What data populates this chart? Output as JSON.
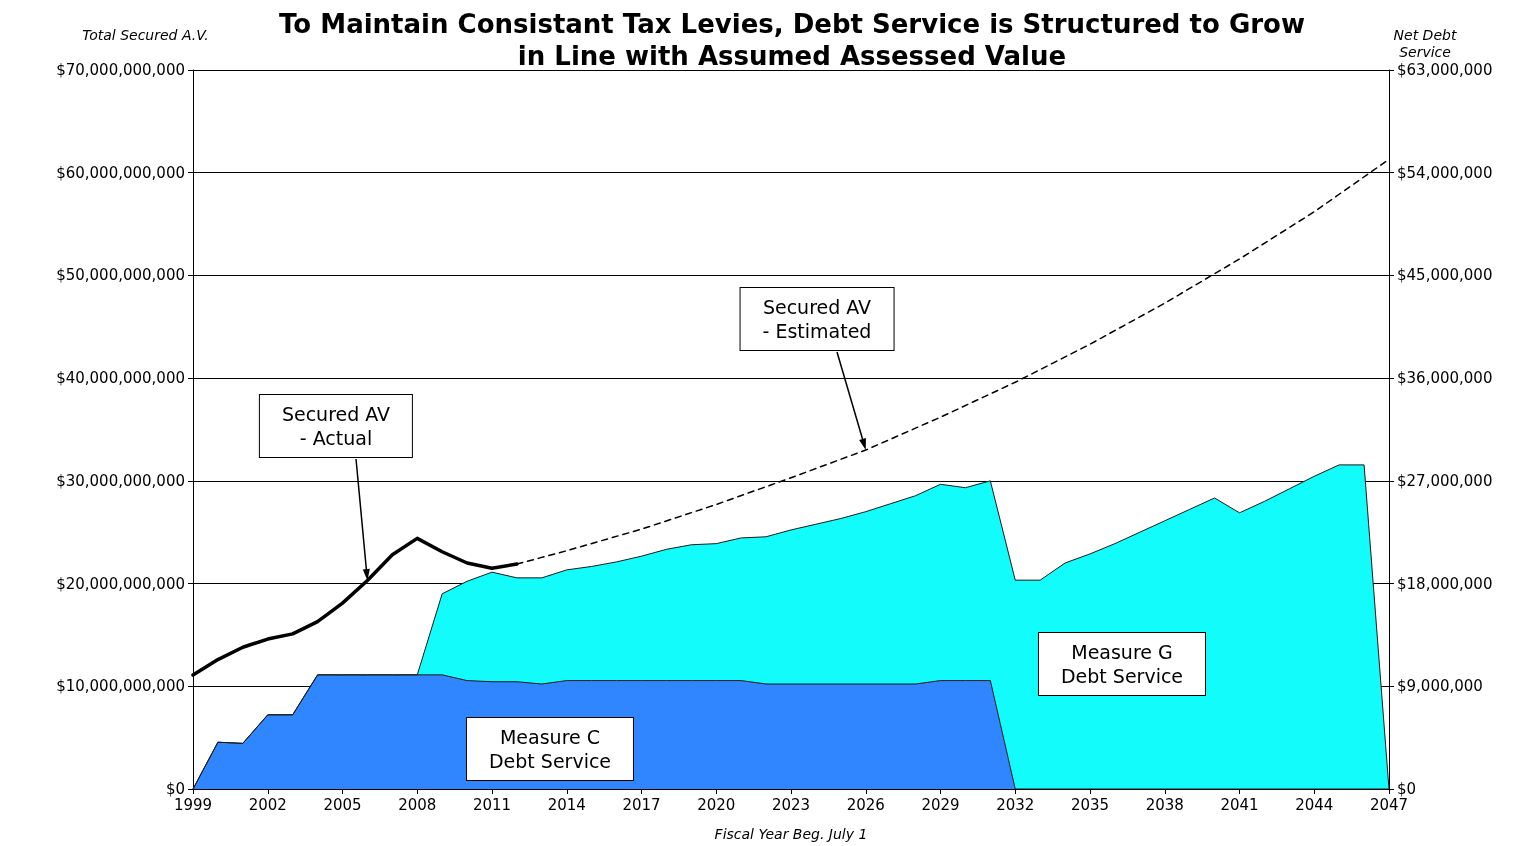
{
  "chart_data": {
    "type": "area",
    "title": "To Maintain Consistant Tax Levies, Debt Service is Structured to Grow\nin Line with Assumed Assessed Value",
    "xlabel": "Fiscal Year Beg. July 1",
    "ylabel": "Total Secured A.V.",
    "y2label": "Net Debt\nService",
    "x": [
      1999,
      2000,
      2001,
      2002,
      2003,
      2004,
      2005,
      2006,
      2007,
      2008,
      2009,
      2010,
      2011,
      2012,
      2013,
      2014,
      2015,
      2016,
      2017,
      2018,
      2019,
      2020,
      2021,
      2022,
      2023,
      2024,
      2025,
      2026,
      2027,
      2028,
      2029,
      2030,
      2031,
      2032,
      2033,
      2034,
      2035,
      2036,
      2037,
      2038,
      2039,
      2040,
      2041,
      2042,
      2043,
      2044,
      2045,
      2046,
      2047
    ],
    "stacked": true,
    "series": [
      {
        "name": "Measure C\nDebt Service",
        "axis": "y2",
        "color": "#2f86ff",
        "values": [
          0,
          4100000.0,
          4000000.0,
          6500000.0,
          6500000.0,
          10000000.0,
          10000000.0,
          10000000.0,
          10000000.0,
          10000000.0,
          10000000.0,
          9500000.0,
          9400000.0,
          9400000.0,
          9200000.0,
          9500000.0,
          9500000.0,
          9500000.0,
          9500000.0,
          9500000.0,
          9500000.0,
          9500000.0,
          9500000.0,
          9200000.0,
          9200000.0,
          9200000.0,
          9200000.0,
          9200000.0,
          9200000.0,
          9200000.0,
          9500000.0,
          9500000.0,
          9500000.0,
          0,
          0,
          0,
          0,
          0,
          0,
          0,
          0,
          0,
          0,
          0,
          0,
          0,
          0,
          0,
          0
        ]
      },
      {
        "name": "Measure G\nDebt Service",
        "axis": "y2",
        "color": "#12fcfc",
        "values": [
          0,
          0,
          0,
          0,
          0,
          0,
          0,
          0,
          0,
          0,
          7100000.0,
          8700000.0,
          9600000.0,
          9100000.0,
          9300000.0,
          9700000.0,
          10000000.0,
          10400000.0,
          10900000.0,
          11500000.0,
          11900000.0,
          12000000.0,
          12500000.0,
          12900000.0,
          13500000.0,
          14000000.0,
          14500000.0,
          15100000.0,
          15800000.0,
          16500000.0,
          17200000.0,
          16900000.0,
          17500000.0,
          18300000.0,
          18300000.0,
          19800000.0,
          20600000.0,
          21500000.0,
          22500000.0,
          23500000.0,
          24500000.0,
          25500000.0,
          24200000.0,
          25200000.0,
          26300000.0,
          27400000.0,
          28400000.0,
          28400000.0,
          0
        ]
      },
      {
        "name": "Secured AV\n- Actual",
        "type": "line",
        "color": "#000000",
        "line_style": "solid",
        "x": [
          1999,
          2000,
          2001,
          2002,
          2003,
          2004,
          2005,
          2006,
          2007,
          2008,
          2009,
          2010,
          2011,
          2012
        ],
        "values": [
          11100000000.0,
          12600000000.0,
          13800000000.0,
          14600000000.0,
          15100000000.0,
          16300000000.0,
          18100000000.0,
          20300000000.0,
          22800000000.0,
          24400000000.0,
          23100000000.0,
          22000000000.0,
          21500000000.0,
          21900000000.0
        ]
      },
      {
        "name": "Secured AV\n- Estimated",
        "type": "line",
        "color": "#000000",
        "line_style": "dashed",
        "x": [
          2012,
          2014,
          2017,
          2020,
          2023,
          2026,
          2029,
          2032,
          2035,
          2038,
          2041,
          2044,
          2047
        ],
        "values": [
          21900000000.0,
          23200000000.0,
          25300000000.0,
          27700000000.0,
          30300000000.0,
          33000000000.0,
          36200000000.0,
          39600000000.0,
          43300000000.0,
          47300000000.0,
          51600000000.0,
          56200000000.0,
          61300000000.0
        ]
      }
    ],
    "xlim": [
      1999,
      2047
    ],
    "xticks": [
      1999,
      2002,
      2005,
      2008,
      2011,
      2014,
      2017,
      2020,
      2023,
      2026,
      2029,
      2032,
      2035,
      2038,
      2041,
      2044,
      2047
    ],
    "ylim": [
      0,
      70000000000.0
    ],
    "yticks": [
      {
        "value": 0,
        "label": "$0"
      },
      {
        "value": 10000000000.0,
        "label": "$10,000,000,000"
      },
      {
        "value": 20000000000.0,
        "label": "$20,000,000,000"
      },
      {
        "value": 30000000000.0,
        "label": "$30,000,000,000"
      },
      {
        "value": 40000000000.0,
        "label": "$40,000,000,000"
      },
      {
        "value": 50000000000.0,
        "label": "$50,000,000,000"
      },
      {
        "value": 60000000000.0,
        "label": "$60,000,000,000"
      },
      {
        "value": 70000000000.0,
        "label": "$70,000,000,000"
      }
    ],
    "y2lim": [
      0,
      63000000.0
    ],
    "y2ticks": [
      {
        "value": 0,
        "label": "$0"
      },
      {
        "value": 9000000.0,
        "label": "$9,000,000"
      },
      {
        "value": 18000000.0,
        "label": "$18,000,000"
      },
      {
        "value": 27000000.0,
        "label": "$27,000,000"
      },
      {
        "value": 36000000.0,
        "label": "$36,000,000"
      },
      {
        "value": 45000000.0,
        "label": "$45,000,000"
      },
      {
        "value": 54000000.0,
        "label": "$54,000,000"
      },
      {
        "value": 63000000.0,
        "label": "$63,000,000"
      }
    ],
    "grid": "y",
    "legend": false,
    "marker": "none"
  }
}
